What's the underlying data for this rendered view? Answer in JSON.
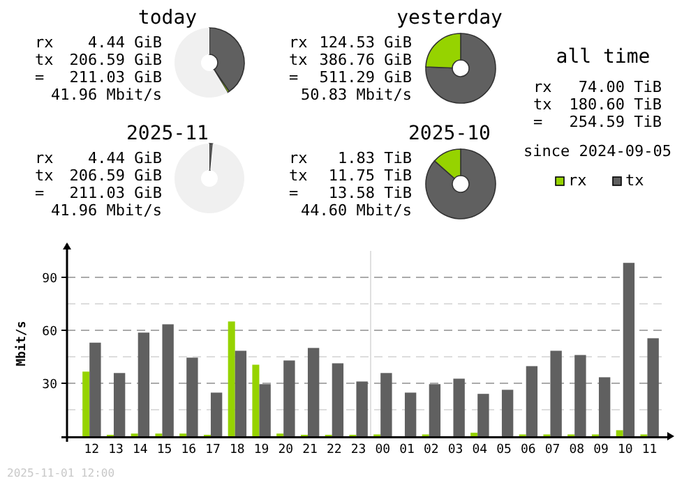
{
  "chart_data": [
    {
      "type": "donut",
      "title": "today",
      "categories": [
        null,
        null,
        null
      ],
      "values": [
        40.41,
        0.87,
        58.72
      ],
      "colors": [
        "#606060",
        "#96d300",
        "#f0f0f0"
      ],
      "annotations": [
        "rx 4.44 GiB",
        "tx 206.59 GiB",
        "= 211.03 GiB",
        "41.96 Mbit/s"
      ]
    },
    {
      "type": "donut",
      "title": "yesterday",
      "categories": [
        null,
        null
      ],
      "values": [
        75.64,
        24.36
      ],
      "colors": [
        "#606060",
        "#96d300"
      ],
      "annotations": [
        "rx 124.53 GiB",
        "tx 386.76 GiB",
        "= 511.29 GiB",
        "50.83 Mbit/s"
      ]
    },
    {
      "type": "other",
      "title": "all time",
      "annotations": [
        "rx 74.00 TiB",
        "tx 180.60 TiB",
        "= 254.59 TiB",
        "since 2024-09-05"
      ]
    },
    {
      "type": "donut",
      "title": "2025-11",
      "categories": [
        null,
        null
      ],
      "values": [
        1.49,
        98.51
      ],
      "colors": [
        "#606060",
        "#f0f0f0"
      ],
      "annotations": [
        "rx 4.44 GiB",
        "tx 206.59 GiB",
        "= 211.03 GiB",
        "41.96 Mbit/s"
      ]
    },
    {
      "type": "donut",
      "title": "2025-10",
      "categories": [
        null,
        null
      ],
      "values": [
        86.52,
        13.48
      ],
      "colors": [
        "#606060",
        "#96d300"
      ],
      "annotations": [
        "rx 1.83 TiB",
        "tx 11.75 TiB",
        "= 13.58 TiB",
        "44.60 Mbit/s"
      ]
    },
    {
      "type": "bar",
      "ylabel": "Mbit/s",
      "categories": [
        "12",
        "13",
        "14",
        "15",
        "16",
        "17",
        "18",
        "19",
        "20",
        "21",
        "22",
        "23",
        "00",
        "01",
        "02",
        "03",
        "04",
        "05",
        "06",
        "07",
        "08",
        "09",
        "10",
        "11"
      ],
      "series": [
        {
          "name": "rx",
          "color": "#96d300",
          "values": [
            36.6,
            0.8,
            1.5,
            1.5,
            1.5,
            0.8,
            65,
            40.5,
            1.5,
            0.8,
            0.8,
            0.8,
            1,
            0,
            1,
            0,
            2,
            0,
            1,
            1,
            1,
            1,
            3.4,
            1
          ]
        },
        {
          "name": "tx",
          "color": "#606060",
          "values": [
            53,
            35.8,
            58.7,
            63.4,
            44.5,
            24.7,
            48.4,
            29.5,
            42.9,
            50,
            41.3,
            31,
            35.8,
            24.7,
            29.5,
            32.6,
            24,
            26.3,
            39.7,
            48.4,
            46,
            33.4,
            98.2,
            55.5
          ]
        }
      ],
      "ylim": [
        0,
        105
      ],
      "yticks": [
        {
          "value": 15,
          "label": null
        },
        30,
        {
          "value": 45,
          "label": null
        },
        60,
        {
          "value": 75,
          "label": null
        },
        90
      ],
      "grid": "y",
      "legend": "top right",
      "ref_lines": [
        {
          "axis": "x",
          "value": "00",
          "color": "#e0e0e0"
        }
      ],
      "annotations": [
        "2025-11-01 12:00"
      ]
    }
  ]
}
